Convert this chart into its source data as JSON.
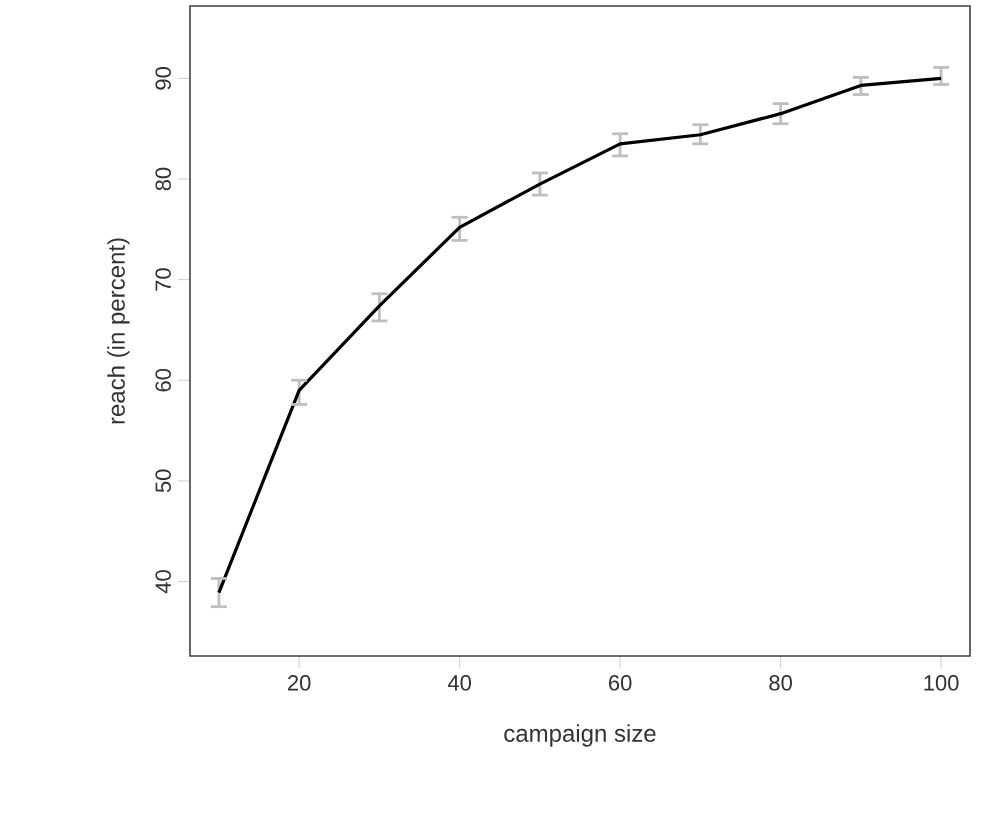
{
  "chart_data": {
    "type": "line",
    "xlabel": "campaign size",
    "ylabel": "reach (in percent)",
    "x": [
      10,
      20,
      30,
      40,
      50,
      60,
      70,
      80,
      90,
      100
    ],
    "series": [
      {
        "color": "#000000",
        "values": [
          38.9,
          59.0,
          67.4,
          75.2,
          79.5,
          83.5,
          84.4,
          86.5,
          89.3,
          90.0
        ],
        "errors": [
          [
            37.5,
            40.3
          ],
          [
            57.6,
            60.0
          ],
          [
            65.9,
            68.6
          ],
          [
            73.9,
            76.2
          ],
          [
            78.4,
            80.6
          ],
          [
            82.3,
            84.5
          ],
          [
            83.5,
            85.4
          ],
          [
            85.5,
            87.5
          ],
          [
            88.4,
            90.1
          ],
          [
            89.4,
            91.1
          ]
        ]
      }
    ],
    "xlim": [
      6.4,
      103.6
    ],
    "ylim": [
      32.6,
      97.2
    ],
    "xticks": [
      20,
      40,
      60,
      80,
      100
    ],
    "yticks": [
      40,
      50,
      60,
      70,
      80,
      90
    ],
    "grid": false,
    "marker": "none",
    "line_style": "solid"
  }
}
